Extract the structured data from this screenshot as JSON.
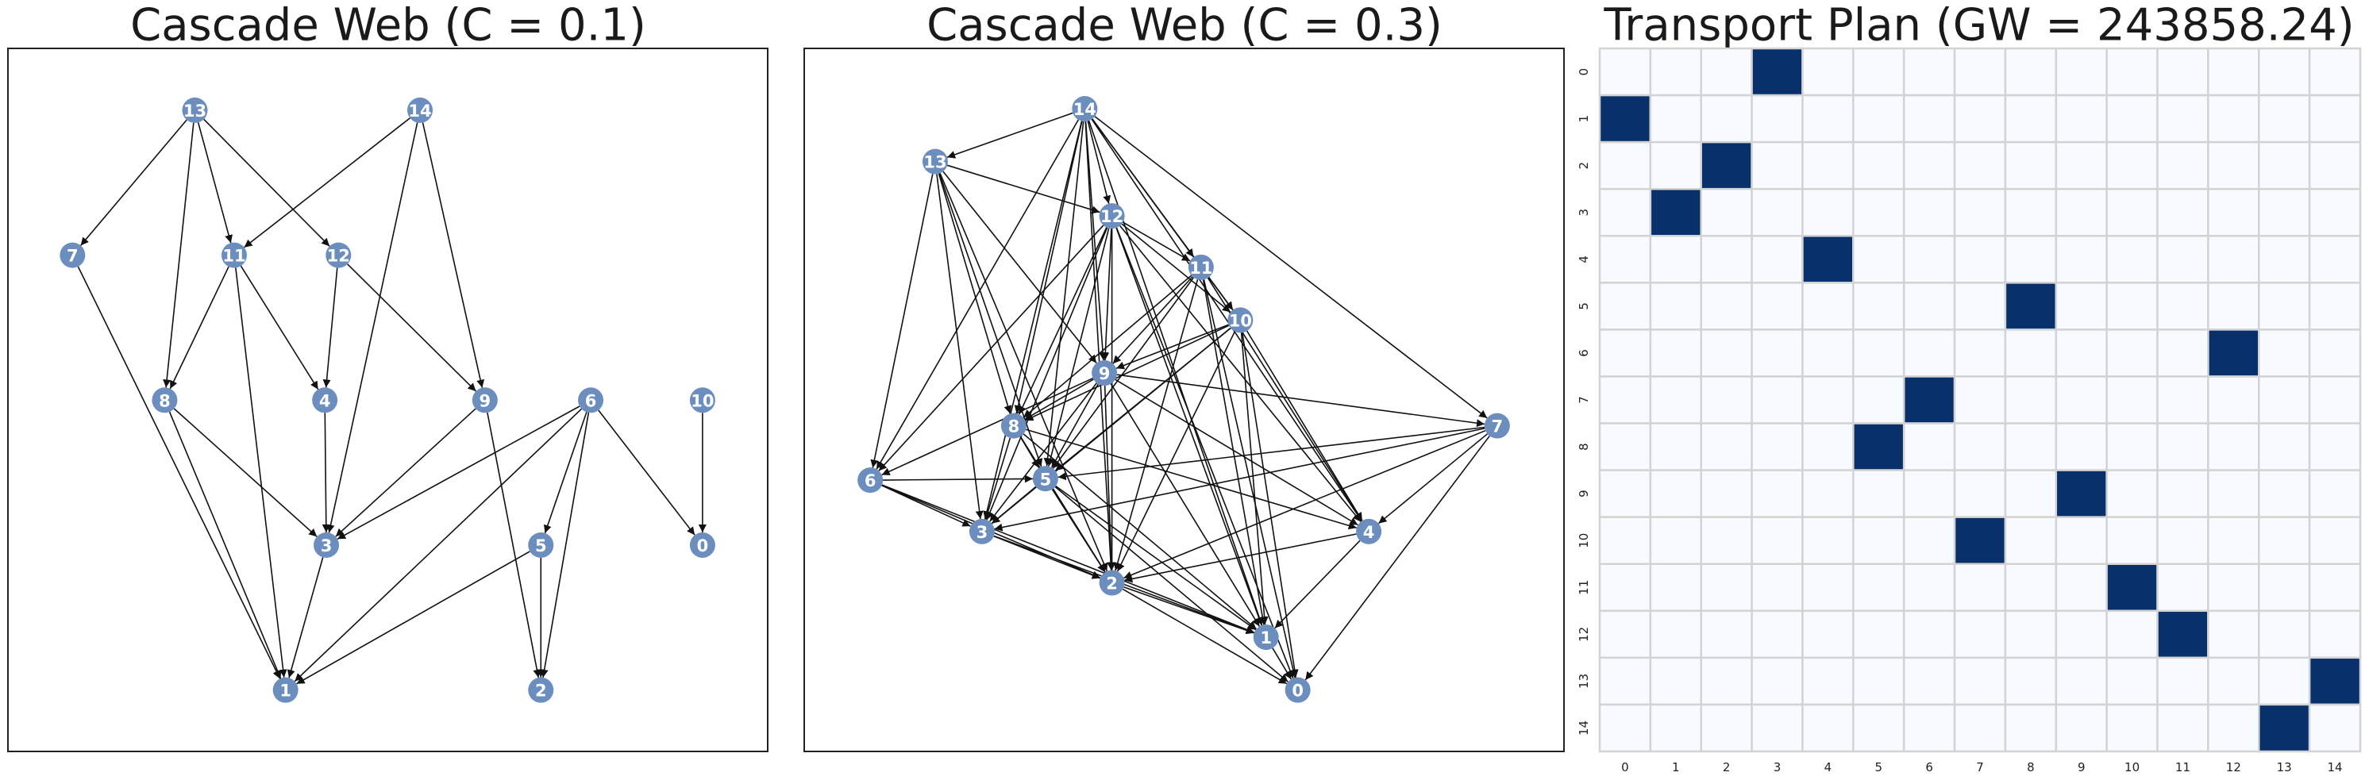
{
  "chart_data": [
    {
      "type": "network",
      "title": "Cascade Web (C = 0.1)",
      "nodes": [
        "13",
        "14",
        "7",
        "11",
        "12",
        "8",
        "4",
        "9",
        "6",
        "10",
        "3",
        "5",
        "0",
        "1",
        "2"
      ],
      "edges": [
        [
          "13",
          "7"
        ],
        [
          "13",
          "11"
        ],
        [
          "13",
          "12"
        ],
        [
          "13",
          "8"
        ],
        [
          "14",
          "11"
        ],
        [
          "14",
          "3"
        ],
        [
          "14",
          "9"
        ],
        [
          "11",
          "8"
        ],
        [
          "11",
          "4"
        ],
        [
          "11",
          "1"
        ],
        [
          "12",
          "4"
        ],
        [
          "12",
          "9"
        ],
        [
          "7",
          "1"
        ],
        [
          "8",
          "3"
        ],
        [
          "8",
          "1"
        ],
        [
          "4",
          "3"
        ],
        [
          "9",
          "3"
        ],
        [
          "9",
          "2"
        ],
        [
          "6",
          "3"
        ],
        [
          "6",
          "1"
        ],
        [
          "6",
          "5"
        ],
        [
          "6",
          "2"
        ],
        [
          "6",
          "0"
        ],
        [
          "5",
          "1"
        ],
        [
          "5",
          "2"
        ],
        [
          "3",
          "1"
        ],
        [
          "10",
          "0"
        ]
      ],
      "color": "#6c8ebf"
    },
    {
      "type": "network",
      "title": "Cascade Web (C = 0.3)",
      "nodes": [
        "14",
        "13",
        "12",
        "11",
        "10",
        "9",
        "8",
        "7",
        "6",
        "5",
        "3",
        "4",
        "2",
        "1",
        "0"
      ],
      "edges": [
        [
          "14",
          "13"
        ],
        [
          "14",
          "12"
        ],
        [
          "14",
          "11"
        ],
        [
          "14",
          "10"
        ],
        [
          "14",
          "9"
        ],
        [
          "14",
          "8"
        ],
        [
          "14",
          "7"
        ],
        [
          "14",
          "6"
        ],
        [
          "14",
          "5"
        ],
        [
          "14",
          "3"
        ],
        [
          "14",
          "2"
        ],
        [
          "14",
          "1"
        ],
        [
          "14",
          "4"
        ],
        [
          "13",
          "12"
        ],
        [
          "13",
          "9"
        ],
        [
          "13",
          "8"
        ],
        [
          "13",
          "6"
        ],
        [
          "13",
          "5"
        ],
        [
          "13",
          "3"
        ],
        [
          "13",
          "2"
        ],
        [
          "12",
          "11"
        ],
        [
          "12",
          "10"
        ],
        [
          "12",
          "9"
        ],
        [
          "12",
          "8"
        ],
        [
          "12",
          "6"
        ],
        [
          "12",
          "5"
        ],
        [
          "12",
          "3"
        ],
        [
          "12",
          "2"
        ],
        [
          "12",
          "1"
        ],
        [
          "12",
          "4"
        ],
        [
          "12",
          "0"
        ],
        [
          "11",
          "10"
        ],
        [
          "11",
          "9"
        ],
        [
          "11",
          "8"
        ],
        [
          "11",
          "5"
        ],
        [
          "11",
          "4"
        ],
        [
          "11",
          "2"
        ],
        [
          "11",
          "1"
        ],
        [
          "11",
          "0"
        ],
        [
          "10",
          "9"
        ],
        [
          "10",
          "8"
        ],
        [
          "10",
          "5"
        ],
        [
          "10",
          "4"
        ],
        [
          "10",
          "3"
        ],
        [
          "10",
          "2"
        ],
        [
          "10",
          "1"
        ],
        [
          "10",
          "0"
        ],
        [
          "9",
          "8"
        ],
        [
          "9",
          "7"
        ],
        [
          "9",
          "6"
        ],
        [
          "9",
          "5"
        ],
        [
          "9",
          "3"
        ],
        [
          "9",
          "2"
        ],
        [
          "9",
          "1"
        ],
        [
          "9",
          "4"
        ],
        [
          "8",
          "5"
        ],
        [
          "8",
          "3"
        ],
        [
          "8",
          "2"
        ],
        [
          "8",
          "4"
        ],
        [
          "8",
          "1"
        ],
        [
          "7",
          "4"
        ],
        [
          "7",
          "3"
        ],
        [
          "7",
          "2"
        ],
        [
          "7",
          "5"
        ],
        [
          "7",
          "0"
        ],
        [
          "6",
          "5"
        ],
        [
          "6",
          "3"
        ],
        [
          "6",
          "2"
        ],
        [
          "6",
          "1"
        ],
        [
          "5",
          "3"
        ],
        [
          "5",
          "2"
        ],
        [
          "5",
          "1"
        ],
        [
          "5",
          "0"
        ],
        [
          "4",
          "2"
        ],
        [
          "4",
          "1"
        ],
        [
          "3",
          "2"
        ],
        [
          "3",
          "1"
        ],
        [
          "2",
          "1"
        ],
        [
          "2",
          "0"
        ],
        [
          "1",
          "0"
        ]
      ],
      "color": "#6c8ebf"
    },
    {
      "type": "heatmap",
      "title": "Transport Plan (GW = 243858.24)",
      "x_categories": [
        0,
        1,
        2,
        3,
        4,
        5,
        6,
        7,
        8,
        9,
        10,
        11,
        12,
        13,
        14
      ],
      "y_categories": [
        0,
        1,
        2,
        3,
        4,
        5,
        6,
        7,
        8,
        9,
        10,
        11,
        12,
        13,
        14
      ],
      "values": [
        [
          0,
          0,
          0,
          1,
          0,
          0,
          0,
          0,
          0,
          0,
          0,
          0,
          0,
          0,
          0
        ],
        [
          1,
          0,
          0,
          0,
          0,
          0,
          0,
          0,
          0,
          0,
          0,
          0,
          0,
          0,
          0
        ],
        [
          0,
          0,
          1,
          0,
          0,
          0,
          0,
          0,
          0,
          0,
          0,
          0,
          0,
          0,
          0
        ],
        [
          0,
          1,
          0,
          0,
          0,
          0,
          0,
          0,
          0,
          0,
          0,
          0,
          0,
          0,
          0
        ],
        [
          0,
          0,
          0,
          0,
          1,
          0,
          0,
          0,
          0,
          0,
          0,
          0,
          0,
          0,
          0
        ],
        [
          0,
          0,
          0,
          0,
          0,
          0,
          0,
          0,
          1,
          0,
          0,
          0,
          0,
          0,
          0
        ],
        [
          0,
          0,
          0,
          0,
          0,
          0,
          0,
          0,
          0,
          0,
          0,
          0,
          1,
          0,
          0
        ],
        [
          0,
          0,
          0,
          0,
          0,
          0,
          1,
          0,
          0,
          0,
          0,
          0,
          0,
          0,
          0
        ],
        [
          0,
          0,
          0,
          0,
          0,
          1,
          0,
          0,
          0,
          0,
          0,
          0,
          0,
          0,
          0
        ],
        [
          0,
          0,
          0,
          0,
          0,
          0,
          0,
          0,
          0,
          1,
          0,
          0,
          0,
          0,
          0
        ],
        [
          0,
          0,
          0,
          0,
          0,
          0,
          0,
          1,
          0,
          0,
          0,
          0,
          0,
          0,
          0
        ],
        [
          0,
          0,
          0,
          0,
          0,
          0,
          0,
          0,
          0,
          0,
          1,
          0,
          0,
          0,
          0
        ],
        [
          0,
          0,
          0,
          0,
          0,
          0,
          0,
          0,
          0,
          0,
          0,
          1,
          0,
          0,
          0
        ],
        [
          0,
          0,
          0,
          0,
          0,
          0,
          0,
          0,
          0,
          0,
          0,
          0,
          0,
          0,
          1
        ],
        [
          0,
          0,
          0,
          0,
          0,
          0,
          0,
          0,
          0,
          0,
          0,
          0,
          0,
          1,
          0
        ]
      ],
      "colors": [
        "#f7fbff",
        "#08306b"
      ]
    }
  ]
}
